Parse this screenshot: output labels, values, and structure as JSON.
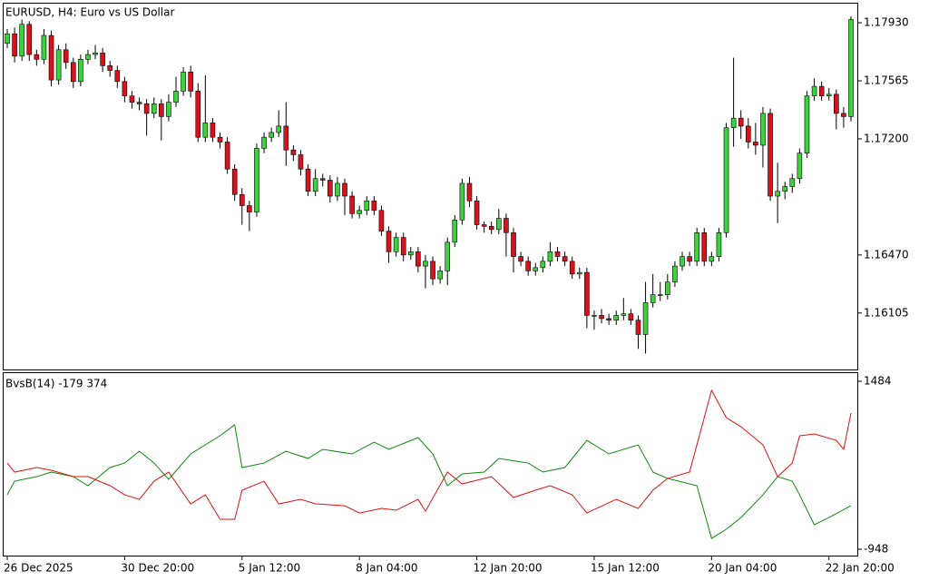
{
  "chart_data": [
    {
      "type": "candlestick",
      "title": "EURUSD, H4:  Euro vs US Dollar",
      "up_color": "#3ed13e",
      "down_color": "#d8121c",
      "ylim": [
        1.1575,
        1.1805
      ],
      "yticks": [
        {
          "value": 1.1793,
          "label": "1.17930"
        },
        {
          "value": 1.17565,
          "label": "1.17565"
        },
        {
          "value": 1.172,
          "label": "1.17200"
        },
        {
          "value": 1.1647,
          "label": "1.16470"
        },
        {
          "value": 1.16105,
          "label": "1.16105"
        }
      ],
      "categories": [
        "26 Dec 2025",
        null,
        null,
        null,
        null,
        null,
        null,
        null,
        null,
        null,
        null,
        null,
        null,
        null,
        null,
        null,
        "30 Dec 20:00",
        null,
        null,
        null,
        null,
        null,
        null,
        null,
        null,
        null,
        null,
        null,
        null,
        null,
        null,
        null,
        "5 Jan 12:00",
        null,
        null,
        null,
        null,
        null,
        null,
        null,
        null,
        null,
        null,
        null,
        null,
        null,
        null,
        null,
        "8 Jan 04:00",
        null,
        null,
        null,
        null,
        null,
        null,
        null,
        null,
        null,
        null,
        null,
        null,
        null,
        null,
        null,
        "12 Jan 20:00",
        null,
        null,
        null,
        null,
        null,
        null,
        null,
        null,
        null,
        null,
        null,
        null,
        null,
        null,
        null,
        "15 Jan 12:00",
        null,
        null,
        null,
        null,
        null,
        null,
        null,
        null,
        null,
        null,
        null,
        null,
        null,
        null,
        null,
        "20 Jan 04:00",
        null,
        null,
        null,
        null,
        null,
        null,
        null,
        null,
        null,
        null,
        null,
        null,
        null,
        null,
        null,
        "22 Jan 20:00",
        null,
        null,
        null
      ],
      "candles": [
        [
          1.178,
          1.1789,
          1.1777,
          1.1786
        ],
        [
          1.1786,
          1.179,
          1.1768,
          1.1772
        ],
        [
          1.1772,
          1.1795,
          1.1769,
          1.1792
        ],
        [
          1.1792,
          1.1794,
          1.1769,
          1.1773
        ],
        [
          1.1773,
          1.1776,
          1.1766,
          1.177
        ],
        [
          1.177,
          1.1789,
          1.1767,
          1.1785
        ],
        [
          1.1785,
          1.1788,
          1.1753,
          1.1757
        ],
        [
          1.1757,
          1.1779,
          1.1754,
          1.1776
        ],
        [
          1.1776,
          1.178,
          1.1764,
          1.1768
        ],
        [
          1.1768,
          1.1771,
          1.1752,
          1.1756
        ],
        [
          1.1756,
          1.1773,
          1.1753,
          1.177
        ],
        [
          1.177,
          1.1776,
          1.1767,
          1.1773
        ],
        [
          1.1773,
          1.1779,
          1.177,
          1.1774
        ],
        [
          1.1774,
          1.1777,
          1.1762,
          1.1766
        ],
        [
          1.1766,
          1.1769,
          1.1759,
          1.1763
        ],
        [
          1.1763,
          1.1766,
          1.1752,
          1.1756
        ],
        [
          1.1756,
          1.1759,
          1.1743,
          1.1747
        ],
        [
          1.1747,
          1.175,
          1.1739,
          1.1743
        ],
        [
          1.1743,
          1.1746,
          1.1738,
          1.1742
        ],
        [
          1.1742,
          1.1745,
          1.1722,
          1.1736
        ],
        [
          1.1736,
          1.1746,
          1.1733,
          1.1742
        ],
        [
          1.1742,
          1.1745,
          1.1719,
          1.1734
        ],
        [
          1.1734,
          1.1748,
          1.1731,
          1.1743
        ],
        [
          1.1743,
          1.1759,
          1.174,
          1.175
        ],
        [
          1.175,
          1.1765,
          1.1747,
          1.1762
        ],
        [
          1.1762,
          1.1766,
          1.1746,
          1.175
        ],
        [
          1.175,
          1.1755,
          1.1718,
          1.1721
        ],
        [
          1.1721,
          1.176,
          1.1718,
          1.173
        ],
        [
          1.173,
          1.1733,
          1.1718,
          1.1721
        ],
        [
          1.1721,
          1.1724,
          1.1714,
          1.1718
        ],
        [
          1.1718,
          1.1721,
          1.1698,
          1.1701
        ],
        [
          1.1701,
          1.1704,
          1.1681,
          1.1685
        ],
        [
          1.1685,
          1.1689,
          1.1666,
          1.1678
        ],
        [
          1.1678,
          1.1681,
          1.1662,
          1.1674
        ],
        [
          1.1674,
          1.1717,
          1.1671,
          1.1714
        ],
        [
          1.1714,
          1.1724,
          1.1711,
          1.1721
        ],
        [
          1.1721,
          1.1727,
          1.1718,
          1.1724
        ],
        [
          1.1724,
          1.1738,
          1.1721,
          1.1728
        ],
        [
          1.1728,
          1.1743,
          1.1703,
          1.1713
        ],
        [
          1.1713,
          1.1716,
          1.1706,
          1.171
        ],
        [
          1.171,
          1.1713,
          1.1697,
          1.1701
        ],
        [
          1.1701,
          1.1704,
          1.1684,
          1.1687
        ],
        [
          1.1687,
          1.1701,
          1.1684,
          1.1695
        ],
        [
          1.1695,
          1.1698,
          1.169,
          1.1694
        ],
        [
          1.1694,
          1.1697,
          1.168,
          1.1684
        ],
        [
          1.1684,
          1.1696,
          1.1681,
          1.1692
        ],
        [
          1.1692,
          1.1695,
          1.1672,
          1.1684
        ],
        [
          1.1684,
          1.1687,
          1.167,
          1.1673
        ],
        [
          1.1673,
          1.1678,
          1.167,
          1.1675
        ],
        [
          1.1675,
          1.1684,
          1.1672,
          1.1681
        ],
        [
          1.1681,
          1.1684,
          1.1672,
          1.1675
        ],
        [
          1.1675,
          1.1678,
          1.1659,
          1.1662
        ],
        [
          1.1662,
          1.1665,
          1.1642,
          1.1649
        ],
        [
          1.1649,
          1.1661,
          1.1646,
          1.1658
        ],
        [
          1.1658,
          1.1661,
          1.1643,
          1.1647
        ],
        [
          1.1647,
          1.1652,
          1.1644,
          1.1649
        ],
        [
          1.1649,
          1.1652,
          1.1636,
          1.164
        ],
        [
          1.164,
          1.1647,
          1.1626,
          1.1643
        ],
        [
          1.1643,
          1.1646,
          1.1628,
          1.1632
        ],
        [
          1.1632,
          1.164,
          1.1629,
          1.1637
        ],
        [
          1.1637,
          1.1658,
          1.1628,
          1.1655
        ],
        [
          1.1655,
          1.1672,
          1.1652,
          1.1669
        ],
        [
          1.1669,
          1.1695,
          1.1666,
          1.1692
        ],
        [
          1.1692,
          1.1696,
          1.1677,
          1.1681
        ],
        [
          1.1681,
          1.1684,
          1.1663,
          1.1666
        ],
        [
          1.1666,
          1.1668,
          1.1661,
          1.1665
        ],
        [
          1.1665,
          1.1668,
          1.166,
          1.1663
        ],
        [
          1.1663,
          1.1676,
          1.166,
          1.167
        ],
        [
          1.167,
          1.1673,
          1.1646,
          1.1661
        ],
        [
          1.1661,
          1.1664,
          1.1636,
          1.1646
        ],
        [
          1.1646,
          1.1649,
          1.164,
          1.1643
        ],
        [
          1.1643,
          1.1646,
          1.1634,
          1.1637
        ],
        [
          1.1637,
          1.1642,
          1.1634,
          1.1639
        ],
        [
          1.1639,
          1.1646,
          1.1636,
          1.1643
        ],
        [
          1.1643,
          1.1655,
          1.164,
          1.1649
        ],
        [
          1.1649,
          1.1652,
          1.1643,
          1.1646
        ],
        [
          1.1646,
          1.1649,
          1.164,
          1.1643
        ],
        [
          1.1643,
          1.1646,
          1.1632,
          1.1635
        ],
        [
          1.1635,
          1.1639,
          1.1632,
          1.1636
        ],
        [
          1.1636,
          1.1639,
          1.1601,
          1.1609
        ],
        [
          1.1609,
          1.1612,
          1.16,
          1.1609
        ],
        [
          1.1609,
          1.1613,
          1.1604,
          1.1607
        ],
        [
          1.1607,
          1.161,
          1.1603,
          1.1606
        ],
        [
          1.1606,
          1.1612,
          1.1603,
          1.1609
        ],
        [
          1.1609,
          1.162,
          1.1606,
          1.161
        ],
        [
          1.161,
          1.1613,
          1.1603,
          1.1606
        ],
        [
          1.1606,
          1.1609,
          1.1588,
          1.1597
        ],
        [
          1.1597,
          1.163,
          1.1585,
          1.1617
        ],
        [
          1.1617,
          1.1635,
          1.1614,
          1.1622
        ],
        [
          1.1622,
          1.163,
          1.1618,
          1.1622
        ],
        [
          1.1622,
          1.1635,
          1.1619,
          1.163
        ],
        [
          1.163,
          1.1643,
          1.1627,
          1.164
        ],
        [
          1.164,
          1.1649,
          1.1637,
          1.1646
        ],
        [
          1.1646,
          1.1649,
          1.164,
          1.1643
        ],
        [
          1.1643,
          1.1664,
          1.164,
          1.1661
        ],
        [
          1.1661,
          1.1664,
          1.164,
          1.1643
        ],
        [
          1.1643,
          1.1649,
          1.164,
          1.1646
        ],
        [
          1.1646,
          1.1664,
          1.1643,
          1.1661
        ],
        [
          1.1661,
          1.173,
          1.1658,
          1.1727
        ],
        [
          1.1727,
          1.1771,
          1.1715,
          1.1733
        ],
        [
          1.1733,
          1.1738,
          1.172,
          1.1728
        ],
        [
          1.1728,
          1.1733,
          1.1714,
          1.1718
        ],
        [
          1.1718,
          1.173,
          1.171,
          1.1716
        ],
        [
          1.1716,
          1.174,
          1.1702,
          1.1736
        ],
        [
          1.1736,
          1.1739,
          1.1681,
          1.1684
        ],
        [
          1.1684,
          1.1705,
          1.1667,
          1.1687
        ],
        [
          1.1687,
          1.1693,
          1.1682,
          1.169
        ],
        [
          1.169,
          1.1698,
          1.1686,
          1.1695
        ],
        [
          1.1695,
          1.1714,
          1.1692,
          1.1711
        ],
        [
          1.1711,
          1.175,
          1.1708,
          1.1747
        ],
        [
          1.1747,
          1.1758,
          1.1744,
          1.1753
        ],
        [
          1.1753,
          1.1756,
          1.1744,
          1.1747
        ],
        [
          1.1747,
          1.1752,
          1.1744,
          1.1748
        ],
        [
          1.1748,
          1.1751,
          1.1726,
          1.1736
        ],
        [
          1.1736,
          1.174,
          1.1727,
          1.1734
        ],
        [
          1.1734,
          1.1797,
          1.1731,
          1.1795
        ]
      ]
    },
    {
      "type": "line",
      "title": "BvsB(14) -179 374",
      "ylim": [
        -1040,
        1602
      ],
      "yticks": [
        1484,
        -948
      ],
      "series": [
        {
          "color": "#0a8a0a",
          "x": [
            0,
            1,
            4,
            6,
            9,
            11,
            14,
            16,
            18,
            20,
            22,
            25,
            29,
            31,
            32,
            35,
            38,
            41,
            43,
            47,
            50,
            52,
            56,
            58,
            60,
            62,
            65,
            67,
            71,
            73,
            76,
            79,
            82,
            86,
            88,
            90,
            94,
            96,
            98,
            100,
            103,
            105,
            107,
            108,
            110,
            112,
            115
          ],
          "values": [
            -160,
            37,
            103,
            169,
            103,
            -28,
            235,
            300,
            471,
            300,
            64,
            432,
            695,
            853,
            235,
            300,
            471,
            366,
            498,
            432,
            603,
            498,
            669,
            432,
            -28,
            143,
            169,
            366,
            300,
            169,
            235,
            629,
            432,
            563,
            169,
            77,
            -28,
            -791,
            -659,
            -489,
            -160,
            103,
            37,
            -160,
            -594,
            -489,
            -318
          ]
        },
        {
          "color": "#e01010",
          "x": [
            0,
            1,
            4,
            6,
            9,
            11,
            14,
            16,
            18,
            20,
            22,
            25,
            27,
            29,
            31,
            32,
            35,
            37,
            40,
            42,
            46,
            48,
            51,
            53,
            56,
            57,
            60,
            62,
            66,
            69,
            72,
            74,
            77,
            79,
            83,
            86,
            88,
            90,
            93,
            94,
            96,
            98,
            100,
            103,
            105,
            107,
            108,
            110,
            113,
            114,
            115
          ],
          "values": [
            300,
            169,
            235,
            195,
            103,
            103,
            -28,
            -160,
            -226,
            37,
            169,
            -291,
            -160,
            -515,
            -515,
            -94,
            37,
            -291,
            -226,
            -291,
            -318,
            -423,
            -357,
            -383,
            -226,
            -397,
            169,
            -2,
            103,
            -199,
            -94,
            -28,
            -160,
            -423,
            -226,
            -357,
            -94,
            77,
            169,
            563,
            1352,
            958,
            826,
            563,
            103,
            300,
            695,
            721,
            629,
            498,
            1024
          ]
        }
      ]
    }
  ]
}
